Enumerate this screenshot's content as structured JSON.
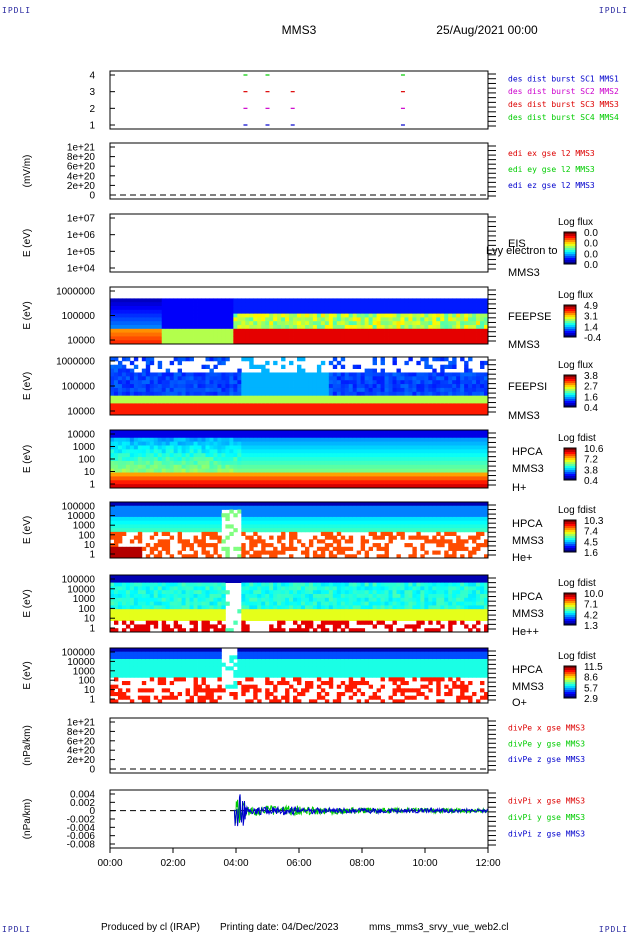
{
  "header": {
    "corner_label": "IPDLI",
    "spacecraft": "MMS3",
    "date": "25/Aug/2021 00:00"
  },
  "footer": {
    "produced_by": "Produced by cl (IRAP)",
    "printing_date": "Printing date: 04/Dec/2023",
    "file": "mms_mms3_srvy_vue_web2.cl"
  },
  "chart_data": {
    "type": "multi-panel time series",
    "x_axis": {
      "range": [
        "00:00",
        "12:00"
      ],
      "ticks": [
        "00:00",
        "02:00",
        "04:00",
        "06:00",
        "08:00",
        "10:00",
        "12:00"
      ]
    },
    "colors": {
      "blue": "#0000cc",
      "magenta": "#cc00cc",
      "red": "#dd0000",
      "green": "#00cc00",
      "frame": "#000000"
    },
    "panels": [
      {
        "id": "burst",
        "y_ticks": [
          "4",
          "3",
          "2",
          "1"
        ],
        "y_label": "",
        "legend": [
          {
            "text": "des dist burst SC1 MMS1",
            "color": "#0000cc"
          },
          {
            "text": "des dist burst SC2 MMS2",
            "color": "#cc00cc"
          },
          {
            "text": "des dist burst SC3 MMS3",
            "color": "#dd0000"
          },
          {
            "text": "des dist burst SC4 MMS4",
            "color": "#00cc00"
          }
        ],
        "marks": [
          {
            "sc": 4,
            "t": [
              4.3,
              5.0,
              9.3
            ],
            "color": "#00cc00"
          },
          {
            "sc": 3,
            "t": [
              4.3,
              5.0,
              5.8,
              9.3
            ],
            "color": "#dd0000"
          },
          {
            "sc": 2,
            "t": [
              4.3,
              5.0,
              5.8,
              9.3
            ],
            "color": "#cc00cc"
          },
          {
            "sc": 1,
            "t": [
              4.3,
              5.0,
              5.8,
              9.3
            ],
            "color": "#0000cc"
          }
        ]
      },
      {
        "id": "edi",
        "y_ticks": [
          "1e+21",
          "8e+20",
          "6e+20",
          "4e+20",
          "2e+20",
          "0"
        ],
        "y_label": "(mV/m)",
        "legend": [
          {
            "text": "edi ex gse l2 MMS3",
            "color": "#dd0000"
          },
          {
            "text": "edi ey gse l2 MMS3",
            "color": "#00cc00"
          },
          {
            "text": "edi ez gse l2 MMS3",
            "color": "#0000cc"
          }
        ]
      },
      {
        "id": "eis",
        "y_ticks": [
          "1e+07",
          "1e+06",
          "1e+05",
          "1e+04"
        ],
        "y_label": "E (eV)",
        "labels": [
          "EIS",
          "MMS3"
        ],
        "overlay": "Lvy electron to",
        "colorbar": {
          "title": "Log flux",
          "values": [
            "0.0",
            "0.0",
            "0.0",
            "0.0"
          ]
        }
      },
      {
        "id": "feepse",
        "y_ticks": [
          "1000000",
          "100000",
          "10000"
        ],
        "y_label": "E (eV)",
        "labels": [
          "FEEPSE",
          "MMS3"
        ],
        "colorbar": {
          "title": "Log flux",
          "values": [
            "4.9",
            "3.1",
            "1.4",
            "-0.4"
          ]
        }
      },
      {
        "id": "feepsi",
        "y_ticks": [
          "1000000",
          "100000",
          "10000"
        ],
        "y_label": "E (eV)",
        "labels": [
          "FEEPSI",
          "MMS3"
        ],
        "colorbar": {
          "title": "Log flux",
          "values": [
            "3.8",
            "2.7",
            "1.6",
            "0.4"
          ]
        }
      },
      {
        "id": "hpca_h",
        "y_ticks": [
          "10000",
          "1000",
          "100",
          "10",
          "1"
        ],
        "y_label": "E (eV)",
        "labels": [
          "HPCA",
          "MMS3",
          "H+"
        ],
        "colorbar": {
          "title": "Log fdist",
          "values": [
            "10.6",
            "7.2",
            "3.8",
            "0.4"
          ]
        }
      },
      {
        "id": "hpca_he",
        "y_ticks": [
          "100000",
          "10000",
          "1000",
          "100",
          "10",
          "1"
        ],
        "y_label": "E (eV)",
        "labels": [
          "HPCA",
          "MMS3",
          "He+"
        ],
        "colorbar": {
          "title": "Log fdist",
          "values": [
            "10.3",
            "7.4",
            "4.5",
            "1.6"
          ]
        }
      },
      {
        "id": "hpca_hepp",
        "y_ticks": [
          "100000",
          "10000",
          "1000",
          "100",
          "10",
          "1"
        ],
        "y_label": "E (eV)",
        "labels": [
          "HPCA",
          "MMS3",
          "He++"
        ],
        "colorbar": {
          "title": "Log fdist",
          "values": [
            "10.0",
            "7.1",
            "4.2",
            "1.3"
          ]
        }
      },
      {
        "id": "hpca_o",
        "y_ticks": [
          "100000",
          "10000",
          "1000",
          "100",
          "10",
          "1"
        ],
        "y_label": "E (eV)",
        "labels": [
          "HPCA",
          "MMS3",
          "O+"
        ],
        "colorbar": {
          "title": "Log fdist",
          "values": [
            "11.5",
            "8.6",
            "5.7",
            "2.9"
          ]
        }
      },
      {
        "id": "divpe",
        "y_ticks": [
          "1e+21",
          "8e+20",
          "6e+20",
          "4e+20",
          "2e+20",
          "0"
        ],
        "y_label": "(nPa/km)",
        "legend": [
          {
            "text": "divPe x gse MMS3",
            "color": "#dd0000"
          },
          {
            "text": "divPe y gse MMS3",
            "color": "#00cc00"
          },
          {
            "text": "divPe z gse MMS3",
            "color": "#0000cc"
          }
        ]
      },
      {
        "id": "divpi",
        "y_ticks": [
          "0.004",
          "0.002",
          "0",
          "-0.002",
          "-0.004",
          "-0.006",
          "-0.008"
        ],
        "y_label": "(nPa/km)",
        "legend": [
          {
            "text": "divPi x gse MMS3",
            "color": "#dd0000"
          },
          {
            "text": "divPi y gse MMS3",
            "color": "#00cc00"
          },
          {
            "text": "divPi z gse MMS3",
            "color": "#0000cc"
          }
        ]
      }
    ]
  }
}
